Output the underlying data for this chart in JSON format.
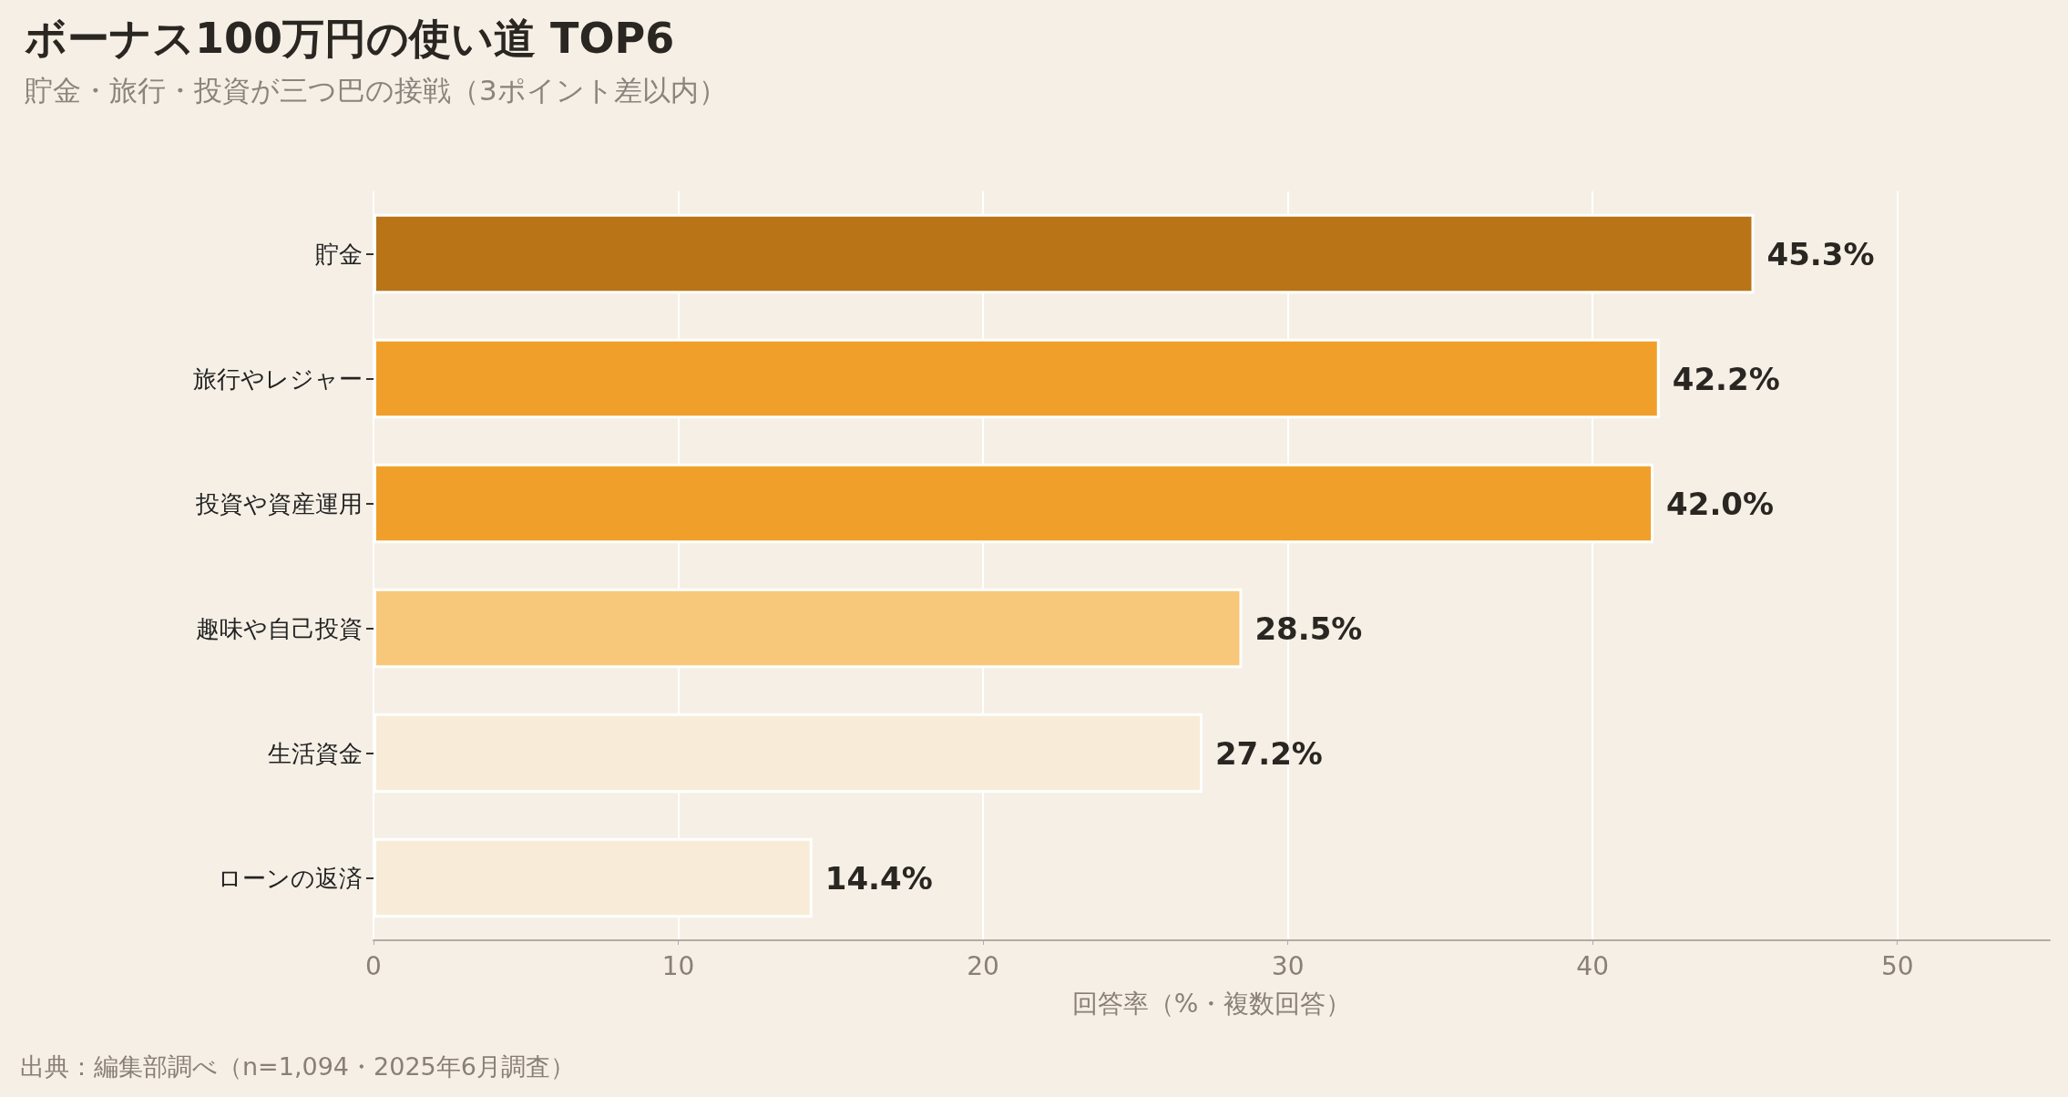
{
  "chart_data": {
    "type": "bar",
    "orientation": "horizontal",
    "title": "ボーナス100万円の使い道 TOP6",
    "subtitle": "貯金・旅行・投資が三つ巴の接戦（3ポイント差以内）",
    "xlabel": "回答率（%・複数回答）",
    "categories": [
      "貯金",
      "旅行やレジャー",
      "投資や資産運用",
      "趣味や自己投資",
      "生活資金",
      "ローンの返済"
    ],
    "values": [
      45.3,
      42.2,
      42.0,
      28.5,
      27.2,
      14.4
    ],
    "colors": [
      "#b87417",
      "#f0a02a",
      "#f0a02a",
      "#f8c87a",
      "#f8ecd8",
      "#f8ecd8"
    ],
    "value_labels": [
      "45.3%",
      "42.2%",
      "42.0%",
      "28.5%",
      "27.2%",
      "14.4%"
    ],
    "xlim": [
      0,
      55
    ],
    "xticks": [
      0,
      10,
      20,
      30,
      40,
      50
    ],
    "grid": "x",
    "annotations": [
      "出典：編集部調べ（n=1,094・2025年6月調査）"
    ]
  }
}
